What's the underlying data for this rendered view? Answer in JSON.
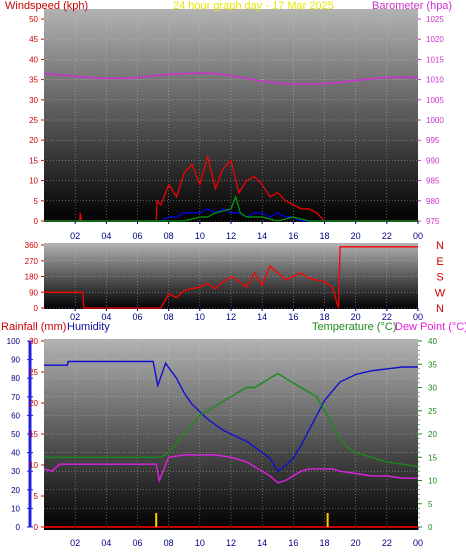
{
  "title": "24 hour graph day - 17 Mar 2025",
  "colors": {
    "windspeed": "#ff0000",
    "gust": "#0000ff",
    "lull": "#00a000",
    "barometer": "#cc33cc",
    "direction": "#ff0000",
    "rainfall": "#cc0000",
    "humidity": "#1010d0",
    "temperature": "#1a8a1a",
    "dewpoint": "#e020e0",
    "rain_marks": "#ffcc00",
    "ticks_dark": "#000080",
    "ticks_red": "#cc0000",
    "ticks_magenta": "#cc33cc"
  },
  "chart_data": [
    {
      "id": "wind-barometer",
      "type": "line",
      "title": "24 hour graph day - 17 Mar 2025",
      "left_label": "Windspeed (kph)",
      "right_label": "Barometer (hpa)",
      "x_ticks": [
        "02",
        "04",
        "06",
        "08",
        "10",
        "12",
        "14",
        "16",
        "18",
        "20",
        "22",
        "00"
      ],
      "x_range_hours": [
        0,
        24
      ],
      "y_left_ticks": [
        "0",
        "5",
        "10",
        "15",
        "20",
        "25",
        "30",
        "35",
        "40",
        "45",
        "50"
      ],
      "ylim_left": [
        0,
        50
      ],
      "y_right_ticks": [
        "975",
        "980",
        "985",
        "990",
        "995",
        "1000",
        "1005",
        "1010",
        "1015",
        "1020",
        "1025"
      ],
      "ylim_right": [
        975,
        1025
      ],
      "grid": true,
      "series": [
        {
          "key": "barometer",
          "axis": "right",
          "x": [
            0,
            1,
            2,
            3,
            4,
            5,
            6,
            7,
            8,
            9,
            10,
            11,
            12,
            13,
            14,
            15,
            16,
            17,
            18,
            19,
            20,
            21,
            22,
            23,
            24
          ],
          "values": [
            1011.5,
            1011.2,
            1010.8,
            1010.5,
            1010.3,
            1010.3,
            1010.5,
            1010.9,
            1011.3,
            1011.5,
            1011.6,
            1011.5,
            1011.0,
            1010.3,
            1009.6,
            1009.1,
            1008.9,
            1008.9,
            1009.0,
            1009.3,
            1009.8,
            1010.2,
            1010.5,
            1010.6,
            1010.5
          ]
        },
        {
          "key": "windspeed",
          "axis": "left",
          "x": [
            0,
            1,
            2,
            2.3,
            2.32,
            2.4,
            7.2,
            7.25,
            7.5,
            8,
            8.5,
            9,
            9.5,
            10,
            10.5,
            11,
            11.5,
            12,
            12.5,
            13,
            13.5,
            14,
            14.5,
            15,
            15.5,
            16,
            16.5,
            17,
            17.5,
            18,
            24
          ],
          "values": [
            0,
            0,
            0,
            0,
            2,
            0,
            0,
            5,
            4,
            9,
            6,
            12,
            14,
            9,
            16,
            8,
            13,
            15,
            7,
            10,
            11,
            9,
            6,
            7,
            5,
            4,
            3,
            3,
            2,
            0,
            0
          ]
        },
        {
          "key": "gust",
          "axis": "left",
          "x": [
            0,
            7.5,
            8,
            8.5,
            9,
            9.5,
            10,
            10.5,
            11,
            11.5,
            12,
            12.5,
            13,
            13.5,
            14,
            14.5,
            15,
            15.5,
            16,
            16.5,
            17,
            24
          ],
          "values": [
            0,
            0,
            1,
            1,
            2,
            2,
            2,
            3,
            2,
            3,
            2,
            2,
            1,
            2,
            2,
            1,
            2,
            1,
            1,
            0,
            0,
            0
          ]
        },
        {
          "key": "lull",
          "axis": "left",
          "x": [
            0,
            8,
            9,
            10,
            10.5,
            11,
            12,
            12.3,
            12.6,
            13,
            14,
            15,
            16,
            17,
            24
          ],
          "values": [
            0,
            0,
            0,
            1,
            1,
            2,
            3,
            6,
            2,
            1,
            1,
            0,
            1,
            0,
            0
          ]
        }
      ]
    },
    {
      "id": "wind-direction",
      "type": "line",
      "x_ticks": [
        "02",
        "04",
        "06",
        "08",
        "10",
        "12",
        "14",
        "16",
        "18",
        "20",
        "22",
        "00"
      ],
      "x_range_hours": [
        0,
        24
      ],
      "y_left_ticks": [
        "0",
        "90",
        "180",
        "270",
        "360"
      ],
      "ylim_left": [
        0,
        360
      ],
      "y_right_ticks": [
        "N",
        "W",
        "S",
        "E",
        "N"
      ],
      "grid": true,
      "series": [
        {
          "key": "direction",
          "axis": "left",
          "x": [
            0,
            2.5,
            2.55,
            7.5,
            8,
            8.5,
            9,
            9.5,
            10,
            10.5,
            11,
            11.5,
            12,
            12.5,
            13,
            13.5,
            14,
            14.5,
            15,
            15.5,
            16,
            16.5,
            17,
            17.5,
            18,
            18.5,
            18.9,
            19,
            24
          ],
          "values": [
            90,
            90,
            0,
            0,
            80,
            60,
            100,
            110,
            120,
            140,
            110,
            150,
            180,
            150,
            120,
            200,
            130,
            240,
            200,
            160,
            180,
            200,
            170,
            160,
            150,
            120,
            0,
            350,
            350
          ]
        }
      ]
    },
    {
      "id": "temp-humidity-rain",
      "type": "line",
      "left_label_1": "Rainfall (mm)",
      "left_label_2": "Humidity",
      "right_label_1": "Temperature (°C)",
      "right_label_2": "Dew Point (°C)",
      "x_ticks": [
        "02",
        "04",
        "06",
        "08",
        "10",
        "12",
        "14",
        "16",
        "18",
        "20",
        "22",
        "00"
      ],
      "x_range_hours": [
        0,
        24
      ],
      "y_humidity_ticks": [
        "0",
        "10",
        "20",
        "30",
        "40",
        "50",
        "60",
        "70",
        "80",
        "90",
        "100"
      ],
      "ylim_humidity": [
        0,
        100
      ],
      "y_rain_ticks": [
        "0",
        "5",
        "10",
        "15",
        "20",
        "25",
        "30"
      ],
      "ylim_rain": [
        0,
        30
      ],
      "y_temp_ticks": [
        "0",
        "5",
        "10",
        "15",
        "20",
        "25",
        "30",
        "35",
        "40"
      ],
      "ylim_temp": [
        0,
        40
      ],
      "grid": true,
      "series": [
        {
          "key": "humidity",
          "axis": "humidity",
          "x": [
            0,
            1.5,
            1.55,
            7,
            7.3,
            7.8,
            8.5,
            9,
            9.5,
            10,
            10.5,
            11,
            11.5,
            12,
            12.5,
            13,
            13.5,
            14,
            14.5,
            15,
            15.5,
            16,
            16.5,
            17,
            17.5,
            18,
            18.5,
            19,
            19.5,
            20,
            20.5,
            21,
            22,
            23,
            24
          ],
          "values": [
            87,
            87,
            89,
            89,
            76,
            88,
            80,
            72,
            66,
            62,
            58,
            55,
            52,
            50,
            48,
            46,
            43,
            40,
            37,
            30,
            33,
            37,
            44,
            52,
            60,
            68,
            73,
            78,
            80,
            82,
            83,
            84,
            85,
            86,
            86
          ]
        },
        {
          "key": "temperature",
          "axis": "temp",
          "x": [
            0,
            7,
            7.5,
            8,
            8.5,
            9,
            9.5,
            10,
            10.5,
            11,
            11.5,
            12,
            12.5,
            13,
            13.5,
            14,
            14.5,
            15,
            15.5,
            16,
            16.5,
            17,
            17.5,
            18,
            18.5,
            19,
            19.5,
            20,
            21,
            22,
            23,
            24
          ],
          "values": [
            15,
            15,
            15,
            16,
            18,
            20,
            22,
            24,
            25,
            26,
            27,
            28,
            29,
            30,
            30,
            31,
            32,
            33,
            32,
            31,
            30,
            29,
            28,
            25,
            22,
            19,
            17,
            16,
            15,
            14,
            13.5,
            13
          ]
        },
        {
          "key": "dewpoint",
          "axis": "temp",
          "x": [
            0,
            0.5,
            1,
            6,
            7,
            7.2,
            7.4,
            8,
            9,
            10,
            11,
            12,
            12.5,
            13,
            13.5,
            14,
            14.5,
            15,
            15.5,
            16,
            16.5,
            17,
            18,
            18.5,
            19,
            20,
            21,
            22,
            23,
            24
          ],
          "values": [
            12.5,
            12,
            13.5,
            13.5,
            13.5,
            13.5,
            10,
            15,
            15.5,
            15.5,
            15.5,
            15,
            14.5,
            14,
            13,
            12,
            11,
            9.5,
            10,
            11,
            12,
            12.5,
            12.5,
            12.5,
            12,
            11.5,
            11,
            11,
            10.5,
            10.5
          ]
        },
        {
          "key": "rainfall",
          "axis": "rain",
          "x": [
            0,
            24
          ],
          "values": [
            0,
            0
          ]
        }
      ],
      "rain_marks_hours": [
        7.2,
        18.2
      ]
    }
  ]
}
